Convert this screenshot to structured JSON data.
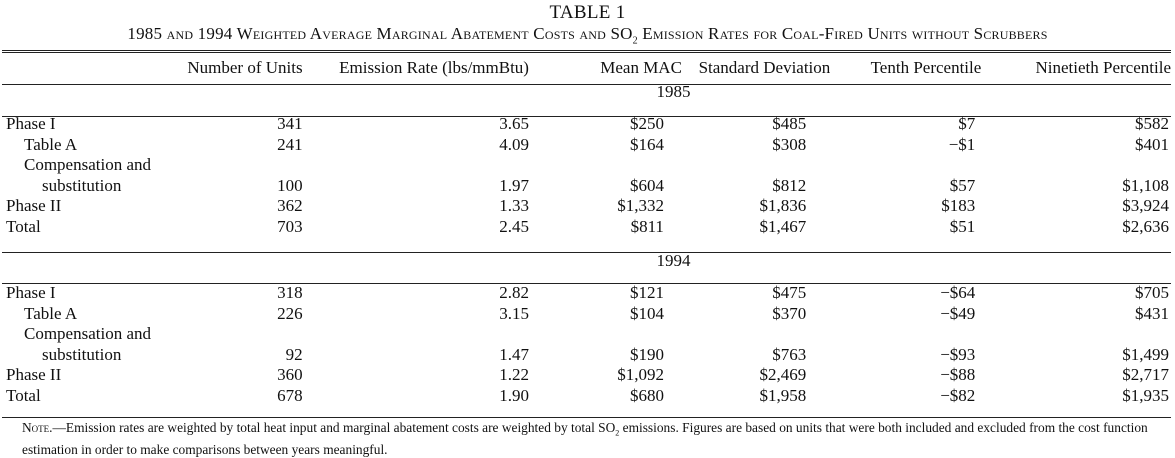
{
  "table_label": "TABLE 1",
  "caption": {
    "part1": "1985 and 1994 Weighted Average Marginal Abatement Costs and SO",
    "sub": "2",
    "part2": " Emission Rates for Coal-Fired Units without Scrubbers"
  },
  "columns": [
    "Number of Units",
    "Emission Rate (lbs/mmBtu)",
    "Mean MAC",
    "Standard Deviation",
    "Tenth Percentile",
    "Ninetieth Percentile"
  ],
  "sections": [
    {
      "year": "1985",
      "rows": [
        {
          "label": "Phase I",
          "values": [
            "341",
            "3.65",
            "$250",
            "$485",
            "$7",
            "$582"
          ]
        },
        {
          "label": "Table A",
          "values": [
            "241",
            "4.09",
            "$164",
            "$308",
            "−$1",
            "$401"
          ]
        },
        {
          "label": "Compensation and",
          "label2": "substitution",
          "values": [
            "100",
            "1.97",
            "$604",
            "$812",
            "$57",
            "$1,108"
          ]
        },
        {
          "label": "Phase II",
          "values": [
            "362",
            "1.33",
            "$1,332",
            "$1,836",
            "$183",
            "$3,924"
          ]
        },
        {
          "label": "Total",
          "values": [
            "703",
            "2.45",
            "$811",
            "$1,467",
            "$51",
            "$2,636"
          ]
        }
      ]
    },
    {
      "year": "1994",
      "rows": [
        {
          "label": "Phase I",
          "values": [
            "318",
            "2.82",
            "$121",
            "$475",
            "−$64",
            "$705"
          ]
        },
        {
          "label": "Table A",
          "values": [
            "226",
            "3.15",
            "$104",
            "$370",
            "−$49",
            "$431"
          ]
        },
        {
          "label": "Compensation and",
          "label2": "substitution",
          "values": [
            "92",
            "1.47",
            "$190",
            "$763",
            "−$93",
            "$1,499"
          ]
        },
        {
          "label": "Phase II",
          "values": [
            "360",
            "1.22",
            "$1,092",
            "$2,469",
            "−$88",
            "$2,717"
          ]
        },
        {
          "label": "Total",
          "values": [
            "678",
            "1.90",
            "$680",
            "$1,958",
            "−$82",
            "$1,935"
          ]
        }
      ]
    }
  ],
  "note": {
    "lead": "Note.",
    "text1": "—Emission rates are weighted by total heat input and marginal abatement costs are weighted by total SO",
    "sub": "2",
    "text2": " emissions. Figures are based on units that were both included and excluded from the cost function estimation in order to make comparisons between years meaningful."
  }
}
